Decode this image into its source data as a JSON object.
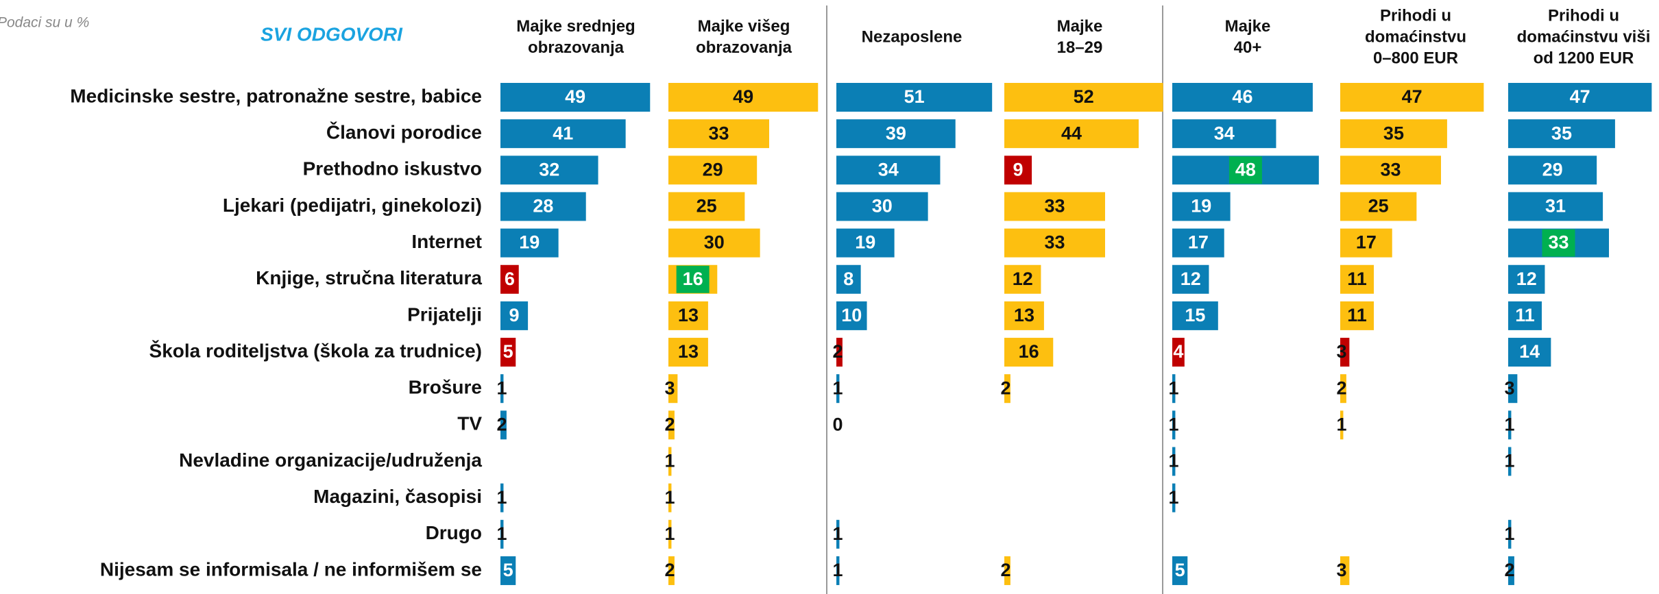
{
  "chart_data": {
    "type": "bar",
    "note": "Podaci su u %",
    "title": "SVI ODGOVORI",
    "categories": [
      "Medicinske sestre, patronažne sestre, babice",
      "Članovi porodice",
      "Prethodno iskustvo",
      "Ljekari (pedijatri, ginekolozi)",
      "Internet",
      "Knjige, stručna literatura",
      "Prijatelji",
      "Škola roditeljstva (škola za trudnice)",
      "Brošure",
      "TV",
      "Nevladine organizacije/udruženja",
      "Magazini, časopisi",
      "Drugo",
      "Nijesam se informisala / ne informišem se"
    ],
    "xlim": [
      0,
      55
    ],
    "separator_after": [
      1,
      3
    ],
    "series": [
      {
        "name": [
          "Majke srednjeg",
          "obrazovanja"
        ],
        "color": "#0b7fb5",
        "values": [
          49,
          41,
          32,
          28,
          19,
          6,
          9,
          5,
          1,
          2,
          null,
          1,
          1,
          5
        ],
        "bar_colors": [
          "#0b7fb5",
          "#0b7fb5",
          "#0b7fb5",
          "#0b7fb5",
          "#0b7fb5",
          "#c00000",
          "#0b7fb5",
          "#c00000",
          "#0b7fb5",
          "#0b7fb5",
          null,
          "#0b7fb5",
          "#0b7fb5",
          "#0b7fb5"
        ],
        "label_box_colors": [
          null,
          null,
          null,
          null,
          null,
          null,
          null,
          null,
          null,
          null,
          null,
          null,
          null,
          null
        ]
      },
      {
        "name": [
          "Majke višeg",
          "obrazovanja"
        ],
        "color": "#fdbf10",
        "values": [
          49,
          33,
          29,
          25,
          30,
          16,
          13,
          13,
          3,
          2,
          1,
          1,
          1,
          2
        ],
        "bar_colors": [
          "#fdbf10",
          "#fdbf10",
          "#fdbf10",
          "#fdbf10",
          "#fdbf10",
          "#fdbf10",
          "#fdbf10",
          "#fdbf10",
          "#fdbf10",
          "#fdbf10",
          "#fdbf10",
          "#fdbf10",
          "#fdbf10",
          "#fdbf10"
        ],
        "label_box_colors": [
          null,
          null,
          null,
          null,
          null,
          "#00b050",
          null,
          null,
          null,
          null,
          null,
          null,
          null,
          null
        ]
      },
      {
        "name": [
          "Nezaposlene"
        ],
        "color": "#0b7fb5",
        "values": [
          51,
          39,
          34,
          30,
          19,
          8,
          10,
          2,
          1,
          0,
          null,
          null,
          1,
          1
        ],
        "bar_colors": [
          "#0b7fb5",
          "#0b7fb5",
          "#0b7fb5",
          "#0b7fb5",
          "#0b7fb5",
          "#0b7fb5",
          "#0b7fb5",
          "#c00000",
          "#0b7fb5",
          "#0b7fb5",
          null,
          null,
          "#0b7fb5",
          "#0b7fb5"
        ],
        "label_box_colors": [
          null,
          null,
          null,
          null,
          null,
          null,
          null,
          null,
          null,
          null,
          null,
          null,
          null,
          null
        ]
      },
      {
        "name": [
          "Majke",
          "18–29"
        ],
        "color": "#fdbf10",
        "values": [
          52,
          44,
          9,
          33,
          33,
          12,
          13,
          16,
          2,
          null,
          null,
          null,
          null,
          2
        ],
        "bar_colors": [
          "#fdbf10",
          "#fdbf10",
          "#c00000",
          "#fdbf10",
          "#fdbf10",
          "#fdbf10",
          "#fdbf10",
          "#fdbf10",
          "#fdbf10",
          null,
          null,
          null,
          null,
          "#fdbf10"
        ],
        "label_box_colors": [
          null,
          null,
          null,
          null,
          null,
          null,
          null,
          null,
          null,
          null,
          null,
          null,
          null,
          null
        ]
      },
      {
        "name": [
          "Majke",
          "40+"
        ],
        "color": "#0b7fb5",
        "values": [
          46,
          34,
          48,
          19,
          17,
          12,
          15,
          4,
          1,
          1,
          1,
          1,
          null,
          5
        ],
        "bar_colors": [
          "#0b7fb5",
          "#0b7fb5",
          "#0b7fb5",
          "#0b7fb5",
          "#0b7fb5",
          "#0b7fb5",
          "#0b7fb5",
          "#c00000",
          "#0b7fb5",
          "#0b7fb5",
          "#0b7fb5",
          "#0b7fb5",
          null,
          "#0b7fb5"
        ],
        "label_box_colors": [
          null,
          null,
          "#00b050",
          null,
          null,
          null,
          null,
          null,
          null,
          null,
          null,
          null,
          null,
          null
        ]
      },
      {
        "name": [
          "Prihodi u",
          "domaćinstvu",
          "0–800 EUR"
        ],
        "color": "#fdbf10",
        "values": [
          47,
          35,
          33,
          25,
          17,
          11,
          11,
          3,
          2,
          1,
          null,
          null,
          null,
          3
        ],
        "bar_colors": [
          "#fdbf10",
          "#fdbf10",
          "#fdbf10",
          "#fdbf10",
          "#fdbf10",
          "#fdbf10",
          "#fdbf10",
          "#c00000",
          "#fdbf10",
          "#fdbf10",
          null,
          null,
          null,
          "#fdbf10"
        ],
        "label_box_colors": [
          null,
          null,
          null,
          null,
          null,
          null,
          null,
          null,
          null,
          null,
          null,
          null,
          null,
          null
        ]
      },
      {
        "name": [
          "Prihodi u",
          "domaćinstvu viši",
          "od 1200 EUR"
        ],
        "color": "#0b7fb5",
        "values": [
          47,
          35,
          29,
          31,
          33,
          12,
          11,
          14,
          3,
          1,
          1,
          null,
          1,
          2
        ],
        "bar_colors": [
          "#0b7fb5",
          "#0b7fb5",
          "#0b7fb5",
          "#0b7fb5",
          "#0b7fb5",
          "#0b7fb5",
          "#0b7fb5",
          "#0b7fb5",
          "#0b7fb5",
          "#0b7fb5",
          "#0b7fb5",
          null,
          "#0b7fb5",
          "#0b7fb5"
        ],
        "label_box_colors": [
          null,
          null,
          null,
          null,
          "#00b050",
          null,
          null,
          null,
          null,
          null,
          null,
          null,
          null,
          null
        ]
      }
    ]
  }
}
